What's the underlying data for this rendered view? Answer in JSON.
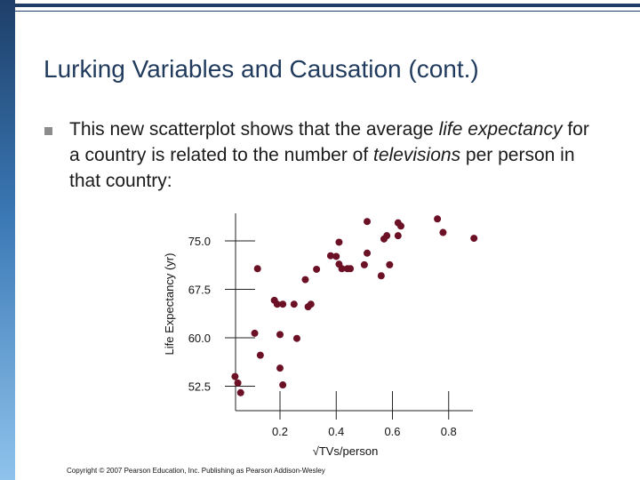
{
  "slide": {
    "title": "Lurking Variables and Causation (cont.)",
    "bullet": {
      "p1": "This new scatterplot shows that the average ",
      "i1": "life expectancy",
      "p2": " for a country is related to the number of ",
      "i2": "televisions",
      "p3": " per person in that country:"
    },
    "copyright": "Copyright © 2007 Pearson Education, Inc. Publishing as Pearson Addison-Wesley"
  },
  "colors": {
    "point": "#6b1025",
    "axis": "#222222",
    "sidebar": "#2b5e93",
    "title": "#1f3a5c"
  },
  "chart_data": {
    "type": "scatter",
    "title": "",
    "xlabel": "√TVs/person",
    "ylabel": "Life Expectancy (yr)",
    "xlim": [
      0.04,
      0.88
    ],
    "ylim": [
      51.0,
      78.5
    ],
    "xticks": [
      0.2,
      0.4,
      0.6,
      0.8
    ],
    "xtick_labels": [
      "0.2",
      "0.4",
      "0.6",
      "0.8"
    ],
    "yticks": [
      52.5,
      60.0,
      67.5,
      75.0
    ],
    "ytick_labels": [
      "52.5",
      "60.0",
      "67.5",
      "75.0"
    ],
    "grid": false,
    "x": [
      0.04,
      0.05,
      0.06,
      0.11,
      0.12,
      0.13,
      0.18,
      0.19,
      0.2,
      0.21,
      0.2,
      0.21,
      0.25,
      0.26,
      0.29,
      0.3,
      0.31,
      0.33,
      0.38,
      0.4,
      0.41,
      0.41,
      0.42,
      0.44,
      0.45,
      0.5,
      0.51,
      0.51,
      0.56,
      0.57,
      0.58,
      0.59,
      0.62,
      0.62,
      0.63,
      0.76,
      0.78,
      0.89
    ],
    "y": [
      54.0,
      53.0,
      51.5,
      60.7,
      70.7,
      57.3,
      65.8,
      65.2,
      60.5,
      52.7,
      55.3,
      65.2,
      65.2,
      59.9,
      69.0,
      64.8,
      65.2,
      70.6,
      72.7,
      72.6,
      71.4,
      74.8,
      70.7,
      70.7,
      70.7,
      71.3,
      73.1,
      78.0,
      69.6,
      75.3,
      75.8,
      71.3,
      75.8,
      77.8,
      77.3,
      78.4,
      76.3,
      75.4
    ]
  }
}
